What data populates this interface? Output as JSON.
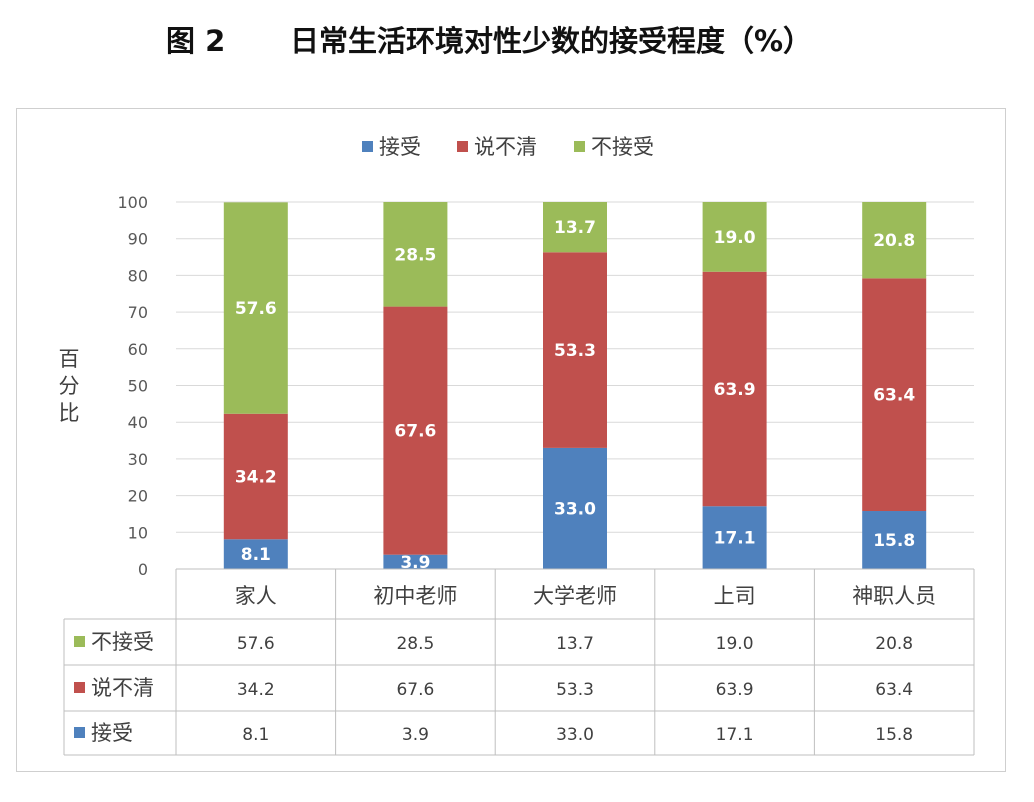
{
  "figure": {
    "number": "图 2",
    "title": "日常生活环境对性少数的接受程度（%）"
  },
  "chart_data": {
    "type": "bar",
    "stacked": true,
    "categories": [
      "家人",
      "初中老师",
      "大学老师",
      "上司",
      "神职人员"
    ],
    "series": [
      {
        "name": "接受",
        "color": "#4f81bd",
        "values": [
          8.1,
          3.9,
          33.0,
          17.1,
          15.8
        ]
      },
      {
        "name": "说不清",
        "color": "#c0504d",
        "values": [
          34.2,
          67.6,
          53.3,
          63.9,
          63.4
        ]
      },
      {
        "name": "不接受",
        "color": "#9bbb59",
        "values": [
          57.6,
          28.5,
          13.7,
          19.0,
          20.8
        ]
      }
    ],
    "ylabel": "百分比",
    "ylim": [
      0,
      100
    ],
    "yticks": [
      0,
      10,
      20,
      30,
      40,
      50,
      60,
      70,
      80,
      90,
      100
    ],
    "grid": true,
    "legend": "top",
    "data_table": true,
    "table_row_order": [
      "不接受",
      "说不清",
      "接受"
    ]
  }
}
